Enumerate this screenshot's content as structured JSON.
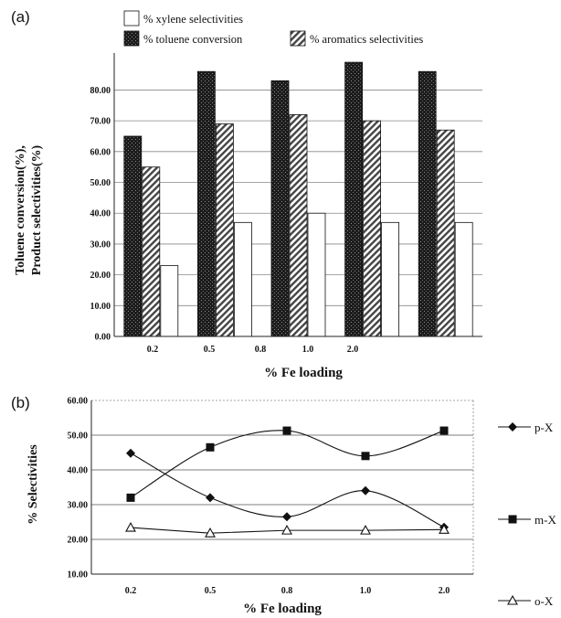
{
  "chart_data": [
    {
      "panel": "(a)",
      "type": "bar",
      "categories": [
        "0.2",
        "0.5",
        "0.8",
        "1.0",
        "2.0"
      ],
      "xlabel": "% Fe loading",
      "ylabel": [
        "Toluene conversion(%),",
        "Product selectivities(%)"
      ],
      "yticks": [
        "0.00",
        "10.00",
        "20.00",
        "30.00",
        "40.00",
        "50.00",
        "60.00",
        "70.00",
        "80.00"
      ],
      "ylim": [
        0,
        92
      ],
      "grid": true,
      "legend_position": "top",
      "series": [
        {
          "name": "% toluene conversion",
          "values": [
            65,
            86,
            83,
            89,
            86
          ],
          "color": "#222222",
          "pattern": "dark-stipple"
        },
        {
          "name": "% aromatics selectivities",
          "values": [
            55,
            69,
            72,
            70,
            67
          ],
          "color": "#9a9a9a",
          "pattern": "diagonal-hatch"
        },
        {
          "name": "% xylene selectivities",
          "values": [
            23,
            37,
            40,
            37,
            37
          ],
          "color": "#ffffff",
          "pattern": "none"
        }
      ]
    },
    {
      "panel": "(b)",
      "type": "line",
      "categories": [
        "0.2",
        "0.5",
        "0.8",
        "1.0",
        "2.0"
      ],
      "xlabel": "% Fe loading",
      "ylabel": "% Selectivities",
      "yticks": [
        "10.00",
        "20.00",
        "30.00",
        "40.00",
        "50.00",
        "60.00"
      ],
      "ylim": [
        10,
        60
      ],
      "grid": true,
      "legend_position": "right",
      "series": [
        {
          "name": "p-X",
          "marker": "diamond",
          "values": [
            44.8,
            32,
            26.5,
            34,
            23.5
          ]
        },
        {
          "name": "m-X",
          "marker": "square",
          "values": [
            32,
            46.5,
            51.3,
            44,
            51.3
          ]
        },
        {
          "name": "o-X",
          "marker": "triangle-open",
          "values": [
            23.4,
            21.8,
            22.6,
            22.6,
            22.8
          ]
        }
      ]
    }
  ]
}
